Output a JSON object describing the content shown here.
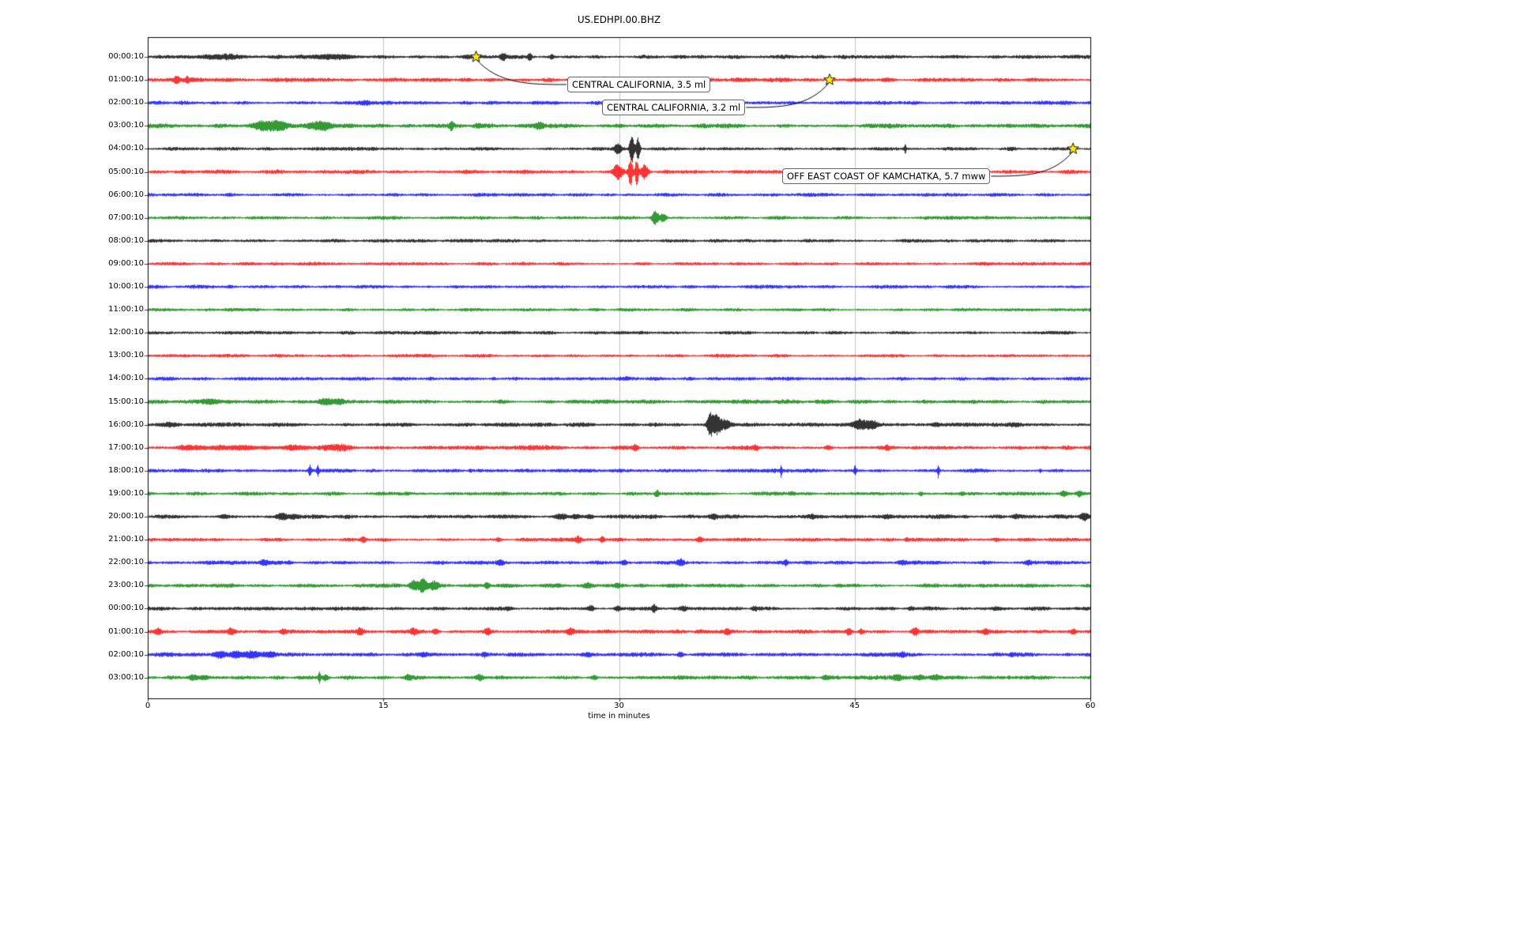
{
  "chart_data": {
    "type": "line",
    "subtype": "seismogram-helicorder-dayplot",
    "title": "US.EDHPI.00.BHZ",
    "xlabel": "time in minutes",
    "xlim": [
      0,
      60
    ],
    "xticks": [
      0,
      15,
      30,
      45,
      60
    ],
    "grid_minutes": [
      15,
      30,
      45
    ],
    "grid": "vertical-only",
    "legend": "none",
    "colors": {
      "black": "#000000",
      "red": "#ff0000",
      "blue": "#0000ff",
      "green": "#008000",
      "grid": "#b0b0b0",
      "star": "#ffee00",
      "annotation_bg": "#ffffff",
      "annotation_border": "#666666"
    },
    "color_cycle": [
      "#000000",
      "#ff0000",
      "#0000ff",
      "#008000"
    ],
    "rows": [
      {
        "label": "00:00:10",
        "color": "#000000",
        "base": 2.2,
        "seed": 101,
        "bursts": [
          [
            4.8,
            2,
            1.5
          ],
          [
            11.8,
            3,
            1.3
          ],
          [
            20.3,
            1.5,
            0.3
          ],
          [
            22.6,
            4,
            0.18
          ],
          [
            24.3,
            4,
            0.14
          ],
          [
            25.7,
            3,
            0.14
          ]
        ]
      },
      {
        "label": "01:00:10",
        "color": "#ff0000",
        "base": 2.2,
        "seed": 102,
        "bursts": [
          [
            1.8,
            4,
            0.2
          ],
          [
            2.5,
            3,
            0.15
          ],
          [
            47,
            1.2,
            0.3
          ]
        ]
      },
      {
        "label": "02:00:10",
        "color": "#0000ff",
        "base": 2.2,
        "seed": 103,
        "bursts": [
          [
            13.8,
            1.8,
            0.4
          ],
          [
            26,
            1,
            0.3
          ]
        ]
      },
      {
        "label": "03:00:10",
        "color": "#008000",
        "base": 2.4,
        "seed": 104,
        "bursts": [
          [
            7.2,
            5,
            0.7
          ],
          [
            8.3,
            5.5,
            0.5
          ],
          [
            10.9,
            4.5,
            0.8
          ],
          [
            19.3,
            5.5,
            0.12
          ],
          [
            21,
            2,
            0.2
          ],
          [
            24.9,
            4.5,
            0.25
          ],
          [
            30,
            1.5,
            0.3
          ]
        ]
      },
      {
        "label": "04:00:10",
        "color": "#000000",
        "base": 1.8,
        "seed": 105,
        "bursts": [
          [
            29.9,
            7,
            0.25
          ],
          [
            30.8,
            17,
            0.15
          ],
          [
            31.2,
            15,
            0.12
          ],
          [
            48.2,
            6,
            0.07
          ],
          [
            55,
            1.2,
            0.2
          ]
        ]
      },
      {
        "label": "05:00:10",
        "color": "#ff0000",
        "base": 2.2,
        "seed": 106,
        "bursts": [
          [
            29.9,
            9,
            0.3
          ],
          [
            30.7,
            20,
            0.13
          ],
          [
            31.1,
            17,
            0.11
          ],
          [
            31.6,
            9,
            0.2
          ]
        ]
      },
      {
        "label": "06:00:10",
        "color": "#0000ff",
        "base": 1.9,
        "seed": 107,
        "bursts": []
      },
      {
        "label": "07:00:10",
        "color": "#008000",
        "base": 1.9,
        "seed": 108,
        "bursts": [
          [
            32.3,
            8,
            0.22
          ],
          [
            32.8,
            5,
            0.2
          ]
        ]
      },
      {
        "label": "08:00:10",
        "color": "#000000",
        "base": 1.9,
        "seed": 109,
        "bursts": []
      },
      {
        "label": "09:00:10",
        "color": "#ff0000",
        "base": 1.8,
        "seed": 110,
        "bursts": []
      },
      {
        "label": "10:00:10",
        "color": "#0000ff",
        "base": 1.9,
        "seed": 111,
        "bursts": [
          [
            5.2,
            1.8,
            0.15
          ]
        ]
      },
      {
        "label": "11:00:10",
        "color": "#008000",
        "base": 1.8,
        "seed": 112,
        "bursts": []
      },
      {
        "label": "12:00:10",
        "color": "#000000",
        "base": 1.9,
        "seed": 113,
        "bursts": []
      },
      {
        "label": "13:00:10",
        "color": "#ff0000",
        "base": 1.8,
        "seed": 114,
        "bursts": []
      },
      {
        "label": "14:00:10",
        "color": "#0000ff",
        "base": 1.9,
        "seed": 115,
        "bursts": [
          [
            22,
            1.2,
            0.15
          ],
          [
            30.5,
            1.2,
            0.15
          ]
        ]
      },
      {
        "label": "15:00:10",
        "color": "#008000",
        "base": 2.2,
        "seed": 116,
        "bursts": [
          [
            3.9,
            3.5,
            0.5
          ],
          [
            11.3,
            4,
            0.5
          ],
          [
            12.2,
            2.5,
            0.3
          ]
        ]
      },
      {
        "label": "16:00:10",
        "color": "#000000",
        "base": 2.2,
        "seed": 117,
        "bursts": [
          [
            1.5,
            1.5,
            0.5
          ],
          [
            35.8,
            14,
            0.2
          ],
          [
            36.2,
            11,
            0.25
          ],
          [
            36.7,
            6,
            0.35
          ],
          [
            45.3,
            6,
            0.45
          ],
          [
            46.1,
            4.5,
            0.35
          ],
          [
            50.2,
            2,
            0.3
          ],
          [
            55,
            1.2,
            0.3
          ]
        ]
      },
      {
        "label": "17:00:10",
        "color": "#ff0000",
        "base": 2.4,
        "seed": 118,
        "bursts": [
          [
            3,
            2,
            1
          ],
          [
            6,
            2.2,
            1.5
          ],
          [
            9.5,
            2,
            1
          ],
          [
            12.1,
            2.8,
            0.7
          ],
          [
            31,
            2.8,
            0.2
          ],
          [
            38.7,
            2.8,
            0.2
          ],
          [
            43.3,
            2.8,
            0.22
          ],
          [
            47,
            1.6,
            0.2
          ]
        ]
      },
      {
        "label": "18:00:10",
        "color": "#0000ff",
        "base": 2.0,
        "seed": 119,
        "bursts": [
          [
            10.3,
            7,
            0.09
          ],
          [
            10.8,
            8,
            0.07
          ],
          [
            20.5,
            1.6,
            0.1
          ],
          [
            40.3,
            7,
            0.06
          ],
          [
            45,
            6,
            0.07
          ],
          [
            50.3,
            9,
            0.055
          ],
          [
            56.8,
            2.2,
            0.1
          ]
        ]
      },
      {
        "label": "19:00:10",
        "color": "#008000",
        "base": 2.0,
        "seed": 120,
        "bursts": [
          [
            32.4,
            4.5,
            0.12
          ],
          [
            41,
            1.6,
            0.2
          ],
          [
            49.2,
            2.2,
            0.15
          ],
          [
            51.8,
            2.2,
            0.15
          ],
          [
            58.3,
            3.2,
            0.22
          ],
          [
            59.3,
            3.2,
            0.18
          ]
        ]
      },
      {
        "label": "20:00:10",
        "color": "#000000",
        "base": 2.2,
        "seed": 121,
        "bursts": [
          [
            4.8,
            1.6,
            0.3
          ],
          [
            8.6,
            3.8,
            0.35
          ],
          [
            9.3,
            2.8,
            0.3
          ],
          [
            26.3,
            2.8,
            0.4
          ],
          [
            27.2,
            2.8,
            0.3
          ],
          [
            28.1,
            2.2,
            0.3
          ],
          [
            36,
            2.2,
            0.2
          ],
          [
            42.3,
            1.7,
            0.2
          ],
          [
            47,
            1.7,
            0.2
          ],
          [
            52,
            1.2,
            0.2
          ],
          [
            55.2,
            1.7,
            0.2
          ],
          [
            59.6,
            4.5,
            0.3
          ]
        ]
      },
      {
        "label": "21:00:10",
        "color": "#ff0000",
        "base": 2.0,
        "seed": 122,
        "bursts": [
          [
            13.7,
            3.4,
            0.15
          ],
          [
            22.3,
            2.2,
            0.15
          ],
          [
            27.4,
            3.4,
            0.18
          ],
          [
            28.9,
            3.4,
            0.15
          ],
          [
            35.1,
            2.8,
            0.2
          ],
          [
            48.3,
            2.2,
            0.15
          ],
          [
            54,
            1.6,
            0.15
          ]
        ]
      },
      {
        "label": "22:00:10",
        "color": "#0000ff",
        "base": 2.1,
        "seed": 123,
        "bursts": [
          [
            7.4,
            2.8,
            0.3
          ],
          [
            9,
            1.7,
            0.2
          ],
          [
            22.4,
            2.2,
            0.2
          ],
          [
            30.3,
            2.8,
            0.22
          ],
          [
            33.9,
            3.4,
            0.18
          ],
          [
            40.6,
            2.8,
            0.15
          ],
          [
            48,
            2.8,
            0.3
          ],
          [
            56,
            1.7,
            0.2
          ]
        ]
      },
      {
        "label": "23:00:10",
        "color": "#008000",
        "base": 2.2,
        "seed": 124,
        "bursts": [
          [
            16.9,
            7,
            0.25
          ],
          [
            17.5,
            9,
            0.3
          ],
          [
            18.2,
            5.5,
            0.3
          ],
          [
            21.6,
            3.4,
            0.2
          ],
          [
            28,
            2.8,
            0.22
          ],
          [
            29.9,
            2.2,
            0.2
          ],
          [
            44,
            1.2,
            0.3
          ]
        ]
      },
      {
        "label": "00:00:10",
        "color": "#000000",
        "base": 2.0,
        "seed": 125,
        "bursts": [
          [
            23,
            1.7,
            0.3
          ],
          [
            28.2,
            3.4,
            0.2
          ],
          [
            29.9,
            3.4,
            0.22
          ],
          [
            32.2,
            5,
            0.14
          ],
          [
            34.1,
            2.2,
            0.2
          ],
          [
            38.6,
            2.8,
            0.2
          ],
          [
            48.6,
            2.2,
            0.2
          ],
          [
            54,
            1.2,
            0.2
          ]
        ]
      },
      {
        "label": "01:00:10",
        "color": "#ff0000",
        "base": 2.2,
        "seed": 126,
        "bursts": [
          [
            0.6,
            3.4,
            0.2
          ],
          [
            5.3,
            3.4,
            0.2
          ],
          [
            8.6,
            2.8,
            0.2
          ],
          [
            13.5,
            3.4,
            0.22
          ],
          [
            16.9,
            3.4,
            0.2
          ],
          [
            18.3,
            3.4,
            0.2
          ],
          [
            21.6,
            3.4,
            0.22
          ],
          [
            26.9,
            3.4,
            0.2
          ],
          [
            36.9,
            2.8,
            0.2
          ],
          [
            44.6,
            3.8,
            0.2
          ],
          [
            45.4,
            3.4,
            0.15
          ],
          [
            48.8,
            5.5,
            0.22
          ],
          [
            53.3,
            2.8,
            0.2
          ],
          [
            58.9,
            2.8,
            0.2
          ]
        ]
      },
      {
        "label": "02:00:10",
        "color": "#0000ff",
        "base": 2.2,
        "seed": 127,
        "bursts": [
          [
            4.6,
            3.4,
            0.4
          ],
          [
            5.6,
            3.8,
            0.4
          ],
          [
            6.6,
            3.4,
            0.5
          ],
          [
            7.8,
            2.8,
            0.4
          ],
          [
            17.5,
            1.7,
            0.3
          ],
          [
            21.4,
            2.8,
            0.15
          ],
          [
            28,
            1.7,
            0.2
          ],
          [
            33.9,
            3.4,
            0.18
          ],
          [
            48,
            1.7,
            0.2
          ],
          [
            55,
            1.7,
            0.2
          ]
        ]
      },
      {
        "label": "03:00:10",
        "color": "#008000",
        "base": 2.2,
        "seed": 128,
        "bursts": [
          [
            2.9,
            3.4,
            0.3
          ],
          [
            3.6,
            2.8,
            0.3
          ],
          [
            10.9,
            7,
            0.09
          ],
          [
            11.3,
            3.4,
            0.2
          ],
          [
            16.6,
            2.8,
            0.22
          ],
          [
            21.1,
            2.2,
            0.2
          ],
          [
            28.4,
            2.8,
            0.2
          ],
          [
            43.1,
            2.2,
            0.2
          ],
          [
            47.7,
            2.8,
            0.3
          ],
          [
            49.1,
            2.8,
            0.3
          ],
          [
            50.1,
            2.2,
            0.3
          ]
        ]
      }
    ],
    "events": [
      {
        "label": "CENTRAL CALIFORNIA, 3.5 ml",
        "row": 0,
        "x_minutes": 20.9,
        "attach": "left"
      },
      {
        "label": "CENTRAL CALIFORNIA, 3.2 ml",
        "row": 1,
        "x_minutes": 43.4,
        "attach": "right"
      },
      {
        "label": "OFF EAST COAST OF KAMCHATKA, 5.7 mww",
        "row": 4,
        "x_minutes": 58.9,
        "attach": "right"
      }
    ]
  }
}
